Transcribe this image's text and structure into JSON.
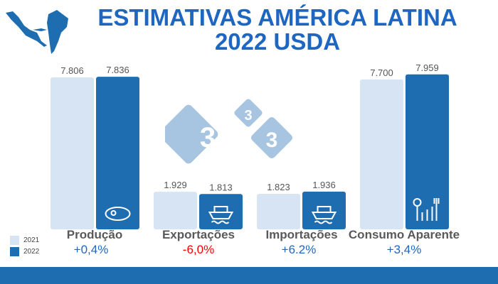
{
  "title_line1": "ESTIMATIVAS AMÉRICA LATINA",
  "title_line2": "2022 USDA",
  "colors": {
    "y2021": "#d6e4f4",
    "y2022": "#1f6db1",
    "positive": "#1f66c1",
    "negative": "#ff0000",
    "title": "#1f66c1"
  },
  "chart_data": {
    "type": "bar",
    "categories": [
      "Produção",
      "Exportações",
      "Importações",
      "Consumo Aparente"
    ],
    "series": [
      {
        "name": "2021",
        "values": [
          7806,
          1929,
          1823,
          7700
        ],
        "labels": [
          "7.806",
          "1.929",
          "1.823",
          "7.700"
        ]
      },
      {
        "name": "2022",
        "values": [
          7836,
          1813,
          1936,
          7959
        ],
        "labels": [
          "7.836",
          "1.813",
          "1.936",
          "7.959"
        ]
      }
    ],
    "changes": [
      "+0,4%",
      "-6,0%",
      "+6.2%",
      "+3,4%"
    ],
    "icons": [
      "steak-icon",
      "ship-icon",
      "ship-icon",
      "consumption-icon"
    ],
    "legend_placement": "bottom-left",
    "grid": false
  },
  "logo_digits": [
    "3",
    "3",
    "3"
  ]
}
